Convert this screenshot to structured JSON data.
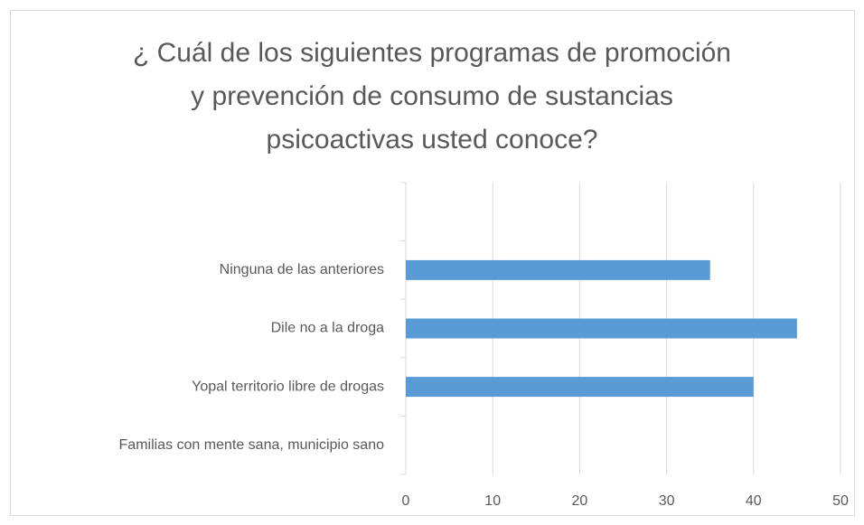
{
  "chart_data": {
    "type": "bar",
    "orientation": "horizontal",
    "title": [
      "¿ Cuál de los siguientes programas de promoción",
      "y prevención de consumo de sustancias",
      "psicoactivas usted conoce?"
    ],
    "categories": [
      "Familias con mente sana, municipio sano",
      "Yopal territorio libre de drogas",
      "Dile no a la droga",
      "Ninguna de las anteriores",
      null
    ],
    "values": [
      0,
      40,
      45,
      35,
      null
    ],
    "color": "#5b9bd5",
    "xlim": [
      0,
      50
    ],
    "xticks": [
      0,
      10,
      20,
      30,
      40,
      50
    ],
    "grid": true
  }
}
